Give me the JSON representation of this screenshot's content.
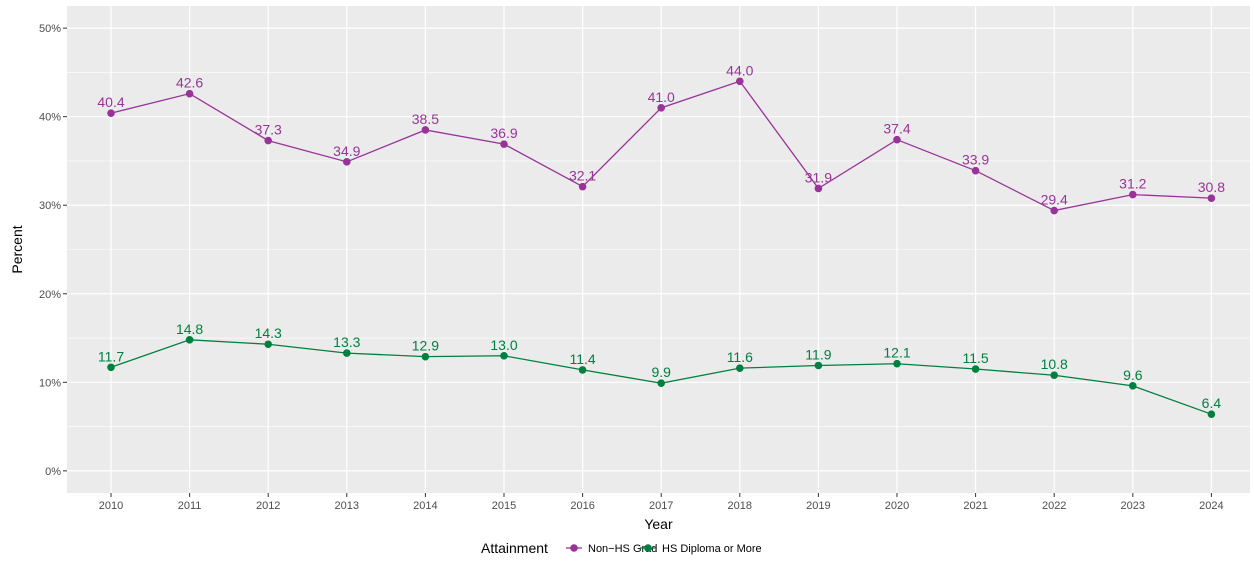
{
  "chart_data": {
    "type": "line",
    "x": [
      2010,
      2011,
      2012,
      2013,
      2014,
      2015,
      2016,
      2017,
      2018,
      2019,
      2020,
      2021,
      2022,
      2023,
      2024
    ],
    "x_tick_labels": [
      "2010",
      "2011",
      "2012",
      "2013",
      "2014",
      "2015",
      "2016",
      "2017",
      "2018",
      "2019",
      "2020",
      "2021",
      "2022",
      "2023",
      "2024"
    ],
    "series": [
      {
        "name": "Non−HS Grad",
        "color": "#993399",
        "values": [
          40.4,
          42.6,
          37.3,
          34.9,
          38.5,
          36.9,
          32.1,
          41.0,
          44.0,
          31.9,
          37.4,
          33.9,
          29.4,
          31.2,
          30.8
        ],
        "labels": [
          "40.4",
          "42.6",
          "37.3",
          "34.9",
          "38.5",
          "36.9",
          "32.1",
          "41.0",
          "44.0",
          "31.9",
          "37.4",
          "33.9",
          "29.4",
          "31.2",
          "30.8"
        ]
      },
      {
        "name": "HS Diploma or More",
        "color": "#008040",
        "values": [
          11.7,
          14.8,
          14.3,
          13.3,
          12.9,
          13.0,
          11.4,
          9.9,
          11.6,
          11.9,
          12.1,
          11.5,
          10.8,
          9.6,
          6.4
        ],
        "labels": [
          "11.7",
          "14.8",
          "14.3",
          "13.3",
          "12.9",
          "13.0",
          "11.4",
          "9.9",
          "11.6",
          "11.9",
          "12.1",
          "11.5",
          "10.8",
          "9.6",
          "6.4"
        ]
      }
    ],
    "xlabel": "Year",
    "ylabel": "Percent",
    "ylim": [
      -2.5,
      52.5
    ],
    "y_ticks": [
      0,
      10,
      20,
      30,
      40,
      50
    ],
    "y_tick_labels": [
      "0%",
      "10%",
      "20%",
      "30%",
      "40%",
      "50%"
    ],
    "grid": true,
    "legend": {
      "title": "Attainment",
      "position": "bottom"
    },
    "panel_background": "#ebebeb",
    "grid_color": "#ffffff"
  }
}
